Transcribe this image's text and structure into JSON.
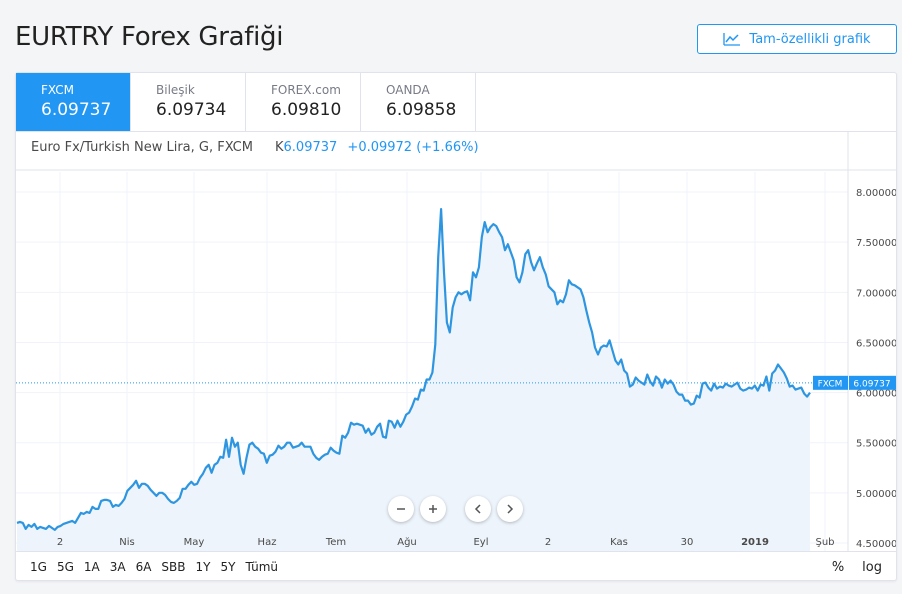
{
  "header": {
    "title": "EURTRY Forex Grafiği",
    "full_chart_label": "Tam-özellikli grafik"
  },
  "tabs": [
    {
      "name": "FXCM",
      "value": "6.09737",
      "active": true
    },
    {
      "name": "Bileşik",
      "value": "6.09734",
      "active": false
    },
    {
      "name": "FOREX.com",
      "value": "6.09810",
      "active": false
    },
    {
      "name": "OANDA",
      "value": "6.09858",
      "active": false
    }
  ],
  "legend": {
    "symbol": "Euro Fx/Turkish New Lira, G, FXCM",
    "k_prefix": "K",
    "k_value": "6.09737",
    "change": "+0.09972 (+1.66%)"
  },
  "price_tag": {
    "source": "FXCM",
    "value": "6.09737"
  },
  "ranges": [
    "1G",
    "5G",
    "1A",
    "3A",
    "6A",
    "SBB",
    "1Y",
    "5Y",
    "Tümü"
  ],
  "bottom_right": {
    "percent": "%",
    "log": "log"
  },
  "icons": {
    "full_chart": "chart-line-icon",
    "zoom_out": "minus-icon",
    "zoom_in": "plus-icon",
    "scroll_left": "chevron-left-icon",
    "scroll_right": "chevron-right-icon"
  },
  "colors": {
    "accent": "#2196f3",
    "line": "#2e96e0",
    "area": "#edf4fb"
  },
  "chart_data": {
    "type": "area",
    "ylim": [
      4.42,
      8.2
    ],
    "y_ticks": [
      "4.50000",
      "5.00000",
      "5.50000",
      "6.00000",
      "6.50000",
      "7.00000",
      "7.50000",
      "8.00000"
    ],
    "x_ticks": [
      "2",
      "Nis",
      "May",
      "Haz",
      "Tem",
      "Ağu",
      "Eyl",
      "2",
      "Kas",
      "30",
      "2019",
      "Şub"
    ],
    "last_value": 6.09737,
    "series": [
      {
        "values": [
          4.7,
          4.71,
          4.7,
          4.64,
          4.68,
          4.66,
          4.69,
          4.64,
          4.66,
          4.65,
          4.64,
          4.67,
          4.65,
          4.63,
          4.66,
          4.67,
          4.69,
          4.7,
          4.71,
          4.72,
          4.7,
          4.75,
          4.8,
          4.79,
          4.81,
          4.8,
          4.86,
          4.84,
          4.84,
          4.92,
          4.93,
          4.93,
          4.92,
          4.86,
          4.88,
          4.87,
          4.9,
          4.94,
          5.02,
          5.05,
          5.08,
          5.12,
          5.05,
          5.09,
          5.09,
          5.07,
          5.03,
          5.0,
          4.97,
          5.0,
          5.0,
          4.98,
          4.94,
          4.91,
          4.9,
          4.92,
          4.95,
          5.04,
          5.04,
          5.08,
          5.11,
          5.08,
          5.09,
          5.15,
          5.19,
          5.25,
          5.28,
          5.2,
          5.28,
          5.3,
          5.36,
          5.35,
          5.53,
          5.36,
          5.55,
          5.46,
          5.5,
          5.28,
          5.19,
          5.35,
          5.48,
          5.5,
          5.46,
          5.44,
          5.4,
          5.39,
          5.3,
          5.37,
          5.38,
          5.41,
          5.47,
          5.44,
          5.46,
          5.5,
          5.5,
          5.45,
          5.46,
          5.47,
          5.5,
          5.46,
          5.46,
          5.46,
          5.39,
          5.35,
          5.33,
          5.36,
          5.38,
          5.39,
          5.45,
          5.42,
          5.4,
          5.39,
          5.57,
          5.55,
          5.6,
          5.7,
          5.68,
          5.69,
          5.68,
          5.67,
          5.6,
          5.64,
          5.58,
          5.6,
          5.66,
          5.69,
          5.56,
          5.55,
          5.72,
          5.71,
          5.65,
          5.72,
          5.66,
          5.71,
          5.78,
          5.8,
          5.86,
          5.94,
          5.93,
          6.03,
          6.02,
          6.13,
          6.13,
          6.2,
          6.48,
          7.35,
          7.83,
          7.2,
          6.7,
          6.6,
          6.85,
          6.95,
          7.0,
          6.98,
          7.0,
          7.01,
          6.92,
          7.2,
          7.15,
          7.25,
          7.55,
          7.7,
          7.6,
          7.65,
          7.68,
          7.66,
          7.6,
          7.55,
          7.42,
          7.48,
          7.4,
          7.32,
          7.15,
          7.1,
          7.2,
          7.38,
          7.42,
          7.3,
          7.22,
          7.29,
          7.35,
          7.25,
          7.18,
          7.06,
          7.03,
          7.0,
          6.88,
          6.92,
          6.9,
          6.98,
          7.12,
          7.08,
          7.07,
          7.05,
          7.03,
          6.95,
          6.82,
          6.7,
          6.6,
          6.45,
          6.38,
          6.45,
          6.47,
          6.46,
          6.52,
          6.42,
          6.32,
          6.28,
          6.33,
          6.22,
          6.19,
          6.06,
          6.08,
          6.15,
          6.12,
          6.1,
          6.08,
          6.18,
          6.11,
          6.07,
          6.16,
          6.13,
          6.05,
          6.13,
          6.09,
          6.12,
          6.08,
          6.01,
          5.98,
          5.98,
          5.92,
          5.92,
          5.88,
          5.89,
          5.97,
          5.95,
          6.09,
          6.1,
          6.05,
          6.02,
          6.09,
          6.04,
          6.06,
          6.05,
          6.09,
          6.07,
          6.06,
          6.08,
          6.1,
          6.04,
          6.02,
          6.03,
          6.05,
          6.04,
          6.07,
          6.02,
          6.08,
          6.07,
          6.16,
          6.02,
          6.19,
          6.22,
          6.28,
          6.24,
          6.2,
          6.14,
          6.06,
          6.07,
          6.03,
          6.04,
          6.05,
          5.99,
          5.96,
          6.0
        ]
      }
    ]
  }
}
